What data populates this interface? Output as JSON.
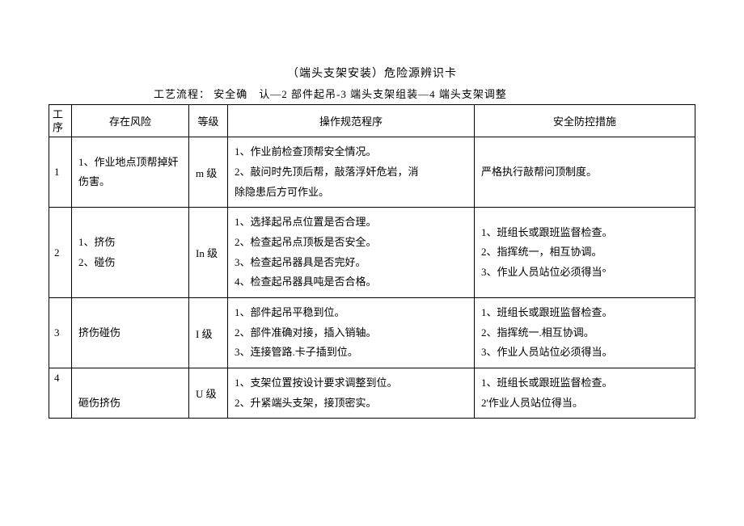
{
  "title": "（端头支架安装）危险源辨识卡",
  "process": {
    "label": "工艺流程：",
    "text": "安全确　认—2 部件起吊-3 端头支架组装—4 端头支架调整"
  },
  "table": {
    "headers": {
      "seq_l1": "工",
      "seq_l2": "序",
      "risk": "存在风险",
      "level": "等级",
      "procedure": "操作规范程序",
      "measure": "安全防控措施"
    },
    "rows": [
      {
        "seq": "1",
        "risk": [
          "1、作业地点顶帮掉奸",
          "伤害。"
        ],
        "level": "m 级",
        "procedure": [
          "1、作业前检查顶帮安全情况。",
          "2、敲问时先顶后帮，敲落浮奸危岩，消",
          "除隐患后方可作业。"
        ],
        "measure": [
          "严格执行敲帮问顶制度。"
        ]
      },
      {
        "seq": "2",
        "risk": [
          "1、挤伤",
          "2、碰伤"
        ],
        "level": "In 级",
        "procedure": [
          "1、选择起吊点位置是否合理。",
          "2、检查起吊点顶板是否安全。",
          "3、检查起吊器具是否完好。",
          "4、检查起吊器具吨是否合格。"
        ],
        "measure": [
          "1、班组长或跟班监督检查。",
          "2、指挥统一，相互协调。",
          "3、作业人员站位必须得当°"
        ]
      },
      {
        "seq": "3",
        "risk": [
          "挤伤碰伤"
        ],
        "level": "I 级",
        "procedure": [
          "1、部件起吊平稳到位。",
          "2、部件准确对接，插入销轴。",
          "3、连接管路.卡子插到位。"
        ],
        "measure": [
          "1、班组长或跟班监督检查。",
          "2、指挥统一.相互协调。",
          "3、作业人员站位必须得当。"
        ]
      },
      {
        "seq": "4",
        "risk": [
          "砸伤挤伤"
        ],
        "level": "U 级",
        "procedure": [
          "1、支架位置按设计要求调整到位。",
          "2、升紧端头支架，接顶密实。"
        ],
        "measure": [
          "1、班组长或跟班监督检查。",
          "2'作业人员站位得当。"
        ]
      }
    ]
  }
}
